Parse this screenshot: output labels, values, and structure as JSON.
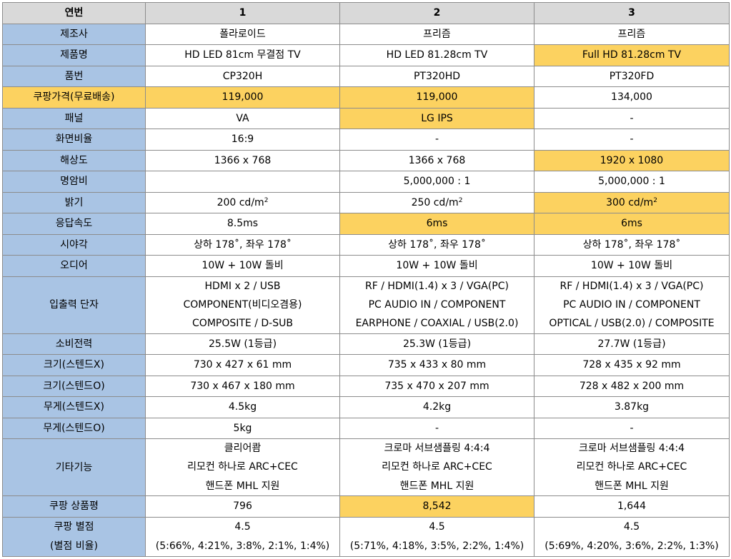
{
  "header": {
    "label": "연번",
    "cols": [
      "1",
      "2",
      "3"
    ]
  },
  "rows": [
    {
      "label": "제조사",
      "cells": [
        {
          "lines": [
            "폴라로이드"
          ]
        },
        {
          "lines": [
            "프리즘"
          ]
        },
        {
          "lines": [
            "프리즘"
          ]
        }
      ]
    },
    {
      "label": "제품명",
      "cells": [
        {
          "lines": [
            "HD LED 81cm 무결점 TV"
          ]
        },
        {
          "lines": [
            "HD LED 81.28cm TV"
          ]
        },
        {
          "lines": [
            "Full HD 81.28cm TV"
          ],
          "hl": true
        }
      ]
    },
    {
      "label": "품번",
      "cells": [
        {
          "lines": [
            "CP320H"
          ]
        },
        {
          "lines": [
            "PT320HD"
          ]
        },
        {
          "lines": [
            "PT320FD"
          ]
        }
      ]
    },
    {
      "label": "쿠팡가격(무료배송)",
      "hl": true,
      "cells": [
        {
          "lines": [
            "119,000"
          ],
          "hl": true
        },
        {
          "lines": [
            "119,000"
          ],
          "hl": true
        },
        {
          "lines": [
            "134,000"
          ]
        }
      ]
    },
    {
      "label": "패널",
      "cells": [
        {
          "lines": [
            "VA"
          ]
        },
        {
          "lines": [
            "LG IPS"
          ],
          "hl": true
        },
        {
          "lines": [
            "-"
          ]
        }
      ]
    },
    {
      "label": "화면비율",
      "cells": [
        {
          "lines": [
            "16:9"
          ]
        },
        {
          "lines": [
            "-"
          ]
        },
        {
          "lines": [
            "-"
          ]
        }
      ]
    },
    {
      "label": "해상도",
      "cells": [
        {
          "lines": [
            "1366 x 768"
          ]
        },
        {
          "lines": [
            "1366 x 768"
          ]
        },
        {
          "lines": [
            "1920 x 1080"
          ],
          "hl": true
        }
      ]
    },
    {
      "label": "명암비",
      "cells": [
        {
          "lines": [
            ""
          ]
        },
        {
          "lines": [
            "5,000,000 : 1"
          ]
        },
        {
          "lines": [
            "5,000,000 : 1"
          ]
        }
      ]
    },
    {
      "label": "밝기",
      "cells": [
        {
          "lines": [
            "200 cd/m"
          ],
          "sup": "2"
        },
        {
          "lines": [
            "250 cd/m"
          ],
          "sup": "2"
        },
        {
          "lines": [
            "300 cd/m"
          ],
          "sup": "2",
          "hl": true
        }
      ]
    },
    {
      "label": "응답속도",
      "cells": [
        {
          "lines": [
            "8.5ms"
          ]
        },
        {
          "lines": [
            "6ms"
          ],
          "hl": true
        },
        {
          "lines": [
            "6ms"
          ],
          "hl": true
        }
      ]
    },
    {
      "label": "시야각",
      "cells": [
        {
          "lines": [
            "상하 178˚, 좌우 178˚"
          ]
        },
        {
          "lines": [
            "상하 178˚, 좌우 178˚"
          ]
        },
        {
          "lines": [
            "상하 178˚, 좌우 178˚"
          ]
        }
      ]
    },
    {
      "label": "오디어",
      "cells": [
        {
          "lines": [
            "10W + 10W 돌비"
          ]
        },
        {
          "lines": [
            "10W + 10W 돌비"
          ]
        },
        {
          "lines": [
            "10W + 10W 돌비"
          ]
        }
      ]
    },
    {
      "label": "입출력 단자",
      "cells": [
        {
          "lines": [
            "HDMI x 2 / USB",
            "COMPONENT(비디오겸용)",
            "COMPOSITE / D-SUB"
          ]
        },
        {
          "lines": [
            "RF / HDMI(1.4) x 3 / VGA(PC)",
            "PC AUDIO IN / COMPONENT",
            "EARPHONE / COAXIAL / USB(2.0)"
          ]
        },
        {
          "lines": [
            "RF / HDMI(1.4) x 3 / VGA(PC)",
            "PC AUDIO IN / COMPONENT",
            "OPTICAL / USB(2.0) / COMPOSITE"
          ]
        }
      ]
    },
    {
      "label": "소비전력",
      "cells": [
        {
          "lines": [
            "25.5W (1등급)"
          ]
        },
        {
          "lines": [
            "25.3W (1등급)"
          ]
        },
        {
          "lines": [
            "27.7W (1등급)"
          ]
        }
      ]
    },
    {
      "label": "크기(스텐드X)",
      "cells": [
        {
          "lines": [
            "730 x 427 x 61 mm"
          ]
        },
        {
          "lines": [
            "735 x 433 x 80 mm"
          ]
        },
        {
          "lines": [
            "728 x 435 x 92 mm"
          ]
        }
      ]
    },
    {
      "label": "크기(스텐드O)",
      "cells": [
        {
          "lines": [
            "730 x 467 x 180 mm"
          ]
        },
        {
          "lines": [
            "735 x 470 x 207 mm"
          ]
        },
        {
          "lines": [
            "728 x 482 x 200 mm"
          ]
        }
      ]
    },
    {
      "label": "무게(스텐드X)",
      "cells": [
        {
          "lines": [
            "4.5kg"
          ]
        },
        {
          "lines": [
            "4.2kg"
          ]
        },
        {
          "lines": [
            "3.87kg"
          ]
        }
      ]
    },
    {
      "label": "무게(스텐드O)",
      "cells": [
        {
          "lines": [
            "5kg"
          ]
        },
        {
          "lines": [
            "-"
          ]
        },
        {
          "lines": [
            "-"
          ]
        }
      ]
    },
    {
      "label": "기타기능",
      "cells": [
        {
          "lines": [
            "클리어쾀",
            "리모컨 하나로 ARC+CEC",
            "핸드폰 MHL 지원"
          ]
        },
        {
          "lines": [
            "크로마 서브샘플링 4:4:4",
            "리모컨 하나로 ARC+CEC",
            "핸드폰 MHL 지원"
          ]
        },
        {
          "lines": [
            "크로마 서브샘플링 4:4:4",
            "리모컨 하나로 ARC+CEC",
            "핸드폰 MHL 지원"
          ]
        }
      ]
    },
    {
      "label": "쿠팡 상품평",
      "cells": [
        {
          "lines": [
            "796"
          ]
        },
        {
          "lines": [
            "8,542"
          ],
          "hl": true
        },
        {
          "lines": [
            "1,644"
          ]
        }
      ]
    },
    {
      "label": "쿠팡 별점\n(별점 비율)",
      "cells": [
        {
          "lines": [
            "4.5",
            "(5:66%, 4:21%, 3:8%, 2:1%, 1:4%)"
          ]
        },
        {
          "lines": [
            "4.5",
            "(5:71%, 4:18%, 3:5%, 2:2%, 1:4%)"
          ]
        },
        {
          "lines": [
            "4.5",
            "(5:69%, 4:20%, 3:6%, 2:2%, 1:3%)"
          ]
        }
      ]
    }
  ],
  "colors": {
    "header_bg": "#d9d9d9",
    "label_bg": "#a9c4e4",
    "highlight_bg": "#fcd260",
    "border": "#8c8c8c"
  }
}
